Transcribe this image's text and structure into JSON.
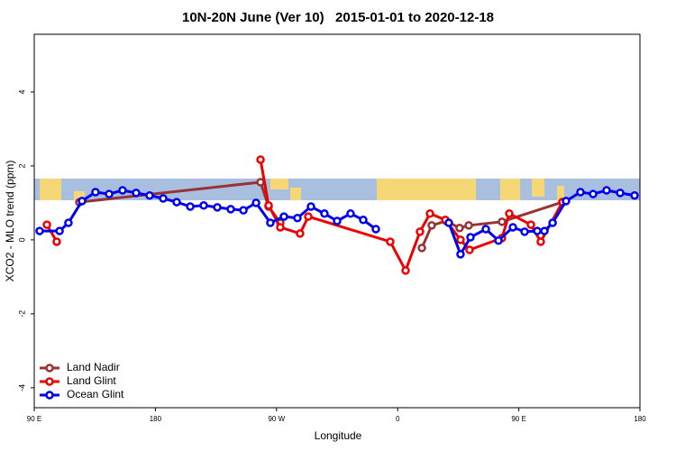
{
  "chart_data": {
    "type": "line",
    "title": "10N-20N June (Ver 10)   2015-01-01 to 2020-12-18",
    "x_label": "Longitude",
    "y_label": "XCO2 - MLO trend (ppm)",
    "xlim": [
      90,
      540
    ],
    "ylim": [
      -4.54,
      5.56
    ],
    "xticks": [
      {
        "value": 90,
        "label": "90 E"
      },
      180,
      {
        "value": 270,
        "label": "90 W"
      },
      {
        "value": 360,
        "label": "0"
      },
      {
        "value": 450,
        "label": "90 E"
      },
      {
        "value": 540,
        "label": "180"
      }
    ],
    "yticks": [
      -4,
      -2,
      0,
      2,
      4
    ],
    "legend": "bottom-left",
    "series": [
      {
        "name": "Land Nadir",
        "color": "#993333",
        "x": [
          123.5,
          258.1,
          264.1,
          272.8,
          365.9,
          378,
          385.3,
          396,
          406,
          412.8,
          437.5,
          482.4
        ],
        "values": [
          1.02,
          1.56,
          0.9,
          0.46,
          null,
          -0.22,
          0.39,
          0.51,
          0.32,
          0.39,
          0.49,
          1.02
        ]
      },
      {
        "name": "Land Glint",
        "color": "#ee0000",
        "x": [
          99.4,
          106.7,
          122.8,
          258.1,
          264.1,
          272.8,
          287.5,
          293.6,
          354.5,
          365.9,
          376.6,
          384,
          395.4,
          406.7,
          413.4,
          437.5,
          442.9,
          459,
          466.3,
          482.4
        ],
        "values": [
          0.41,
          -0.05,
          null,
          2.17,
          0.93,
          0.34,
          0.17,
          0.63,
          -0.05,
          -0.83,
          0.22,
          0.71,
          0.54,
          0,
          -0.27,
          0.05,
          0.71,
          0.41,
          -0.05,
          1.02
        ]
      },
      {
        "name": "Ocean Glint",
        "color": "#0000ee",
        "x": [
          94,
          108.8,
          115.4,
          125.5,
          135.5,
          145.6,
          155.6,
          165.7,
          175.7,
          185.8,
          195.8,
          205.9,
          215.9,
          226,
          236,
          245.4,
          254.8,
          265.4,
          275.5,
          285.5,
          295.6,
          305.6,
          315,
          325,
          334.4,
          343.8,
          370,
          398,
          406.7,
          414.1,
          425.5,
          434.9,
          445.6,
          454.3,
          463.7,
          469,
          475.1,
          485.1,
          495.8,
          505.2,
          515.2,
          525.3,
          536
        ],
        "values": [
          0.24,
          0.24,
          0.46,
          1.05,
          1.29,
          1.24,
          1.34,
          1.27,
          1.2,
          1.12,
          1.02,
          0.9,
          0.93,
          0.88,
          0.83,
          0.8,
          1.0,
          0.46,
          0.63,
          0.59,
          0.9,
          0.71,
          0.51,
          0.71,
          0.54,
          0.29,
          null,
          0.46,
          -0.39,
          0.07,
          0.29,
          -0.02,
          0.34,
          0.22,
          0.24,
          0.24,
          0.46,
          1.05,
          1.29,
          1.24,
          1.34,
          1.27,
          1.2
        ]
      }
    ]
  }
}
